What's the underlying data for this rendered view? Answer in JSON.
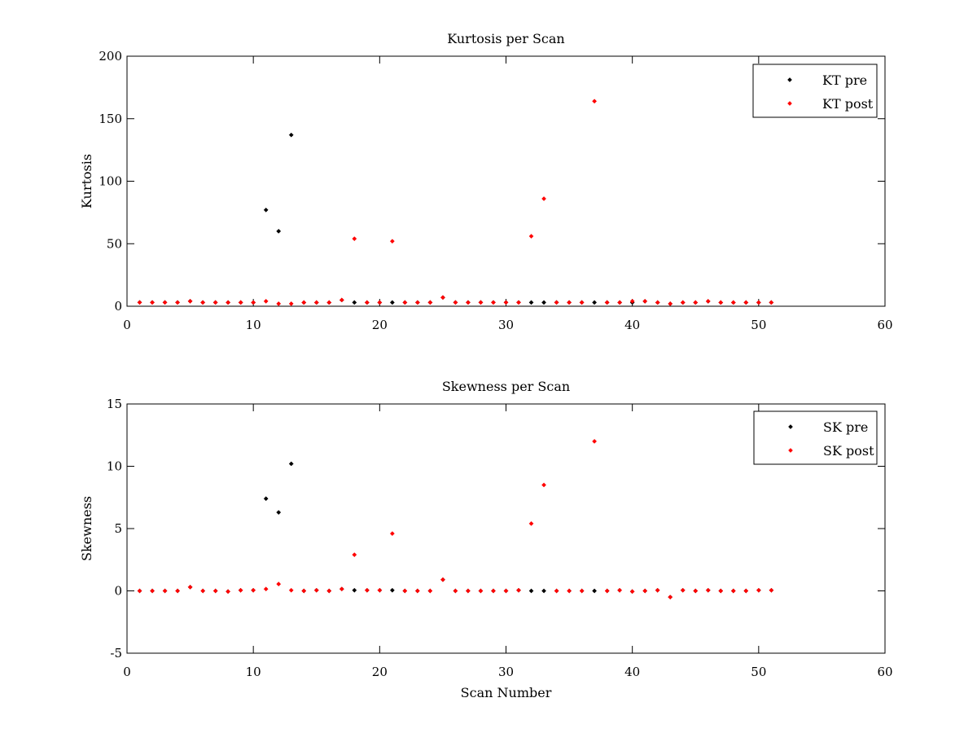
{
  "chart_data": [
    {
      "type": "scatter",
      "title": "Kurtosis per Scan",
      "xlabel": "",
      "ylabel": "Kurtosis",
      "xlim": [
        0,
        60
      ],
      "ylim": [
        0,
        200
      ],
      "xticks": [
        0,
        10,
        20,
        30,
        40,
        50,
        60
      ],
      "yticks": [
        0,
        50,
        100,
        150,
        200
      ],
      "grid": false,
      "legend_position": "top-right",
      "series": [
        {
          "name": "KT pre",
          "color": "#000000",
          "x": [
            1,
            2,
            3,
            4,
            5,
            6,
            7,
            8,
            9,
            10,
            11,
            12,
            13,
            14,
            15,
            16,
            17,
            18,
            19,
            20,
            21,
            22,
            23,
            24,
            25,
            26,
            27,
            28,
            29,
            30,
            31,
            32,
            33,
            34,
            35,
            36,
            37,
            38,
            39,
            40,
            41,
            42,
            43,
            44,
            45,
            46,
            47,
            48,
            49,
            50,
            51
          ],
          "y": [
            3,
            3,
            3,
            3,
            4,
            3,
            3,
            3,
            3,
            3,
            77,
            60,
            137,
            3,
            3,
            3,
            5,
            3,
            3,
            3,
            3,
            3,
            3,
            3,
            7,
            3,
            3,
            3,
            3,
            3,
            3,
            3,
            3,
            3,
            3,
            3,
            3,
            3,
            3,
            3,
            4,
            3,
            2,
            3,
            3,
            4,
            3,
            3,
            3,
            3,
            3
          ]
        },
        {
          "name": "KT post",
          "color": "#ff0000",
          "x": [
            1,
            2,
            3,
            4,
            5,
            6,
            7,
            8,
            9,
            10,
            11,
            12,
            13,
            14,
            15,
            16,
            17,
            18,
            19,
            20,
            21,
            22,
            23,
            24,
            25,
            26,
            27,
            28,
            29,
            30,
            31,
            32,
            33,
            34,
            35,
            36,
            37,
            38,
            39,
            40,
            41,
            42,
            43,
            44,
            45,
            46,
            47,
            48,
            49,
            50,
            51
          ],
          "y": [
            3,
            3,
            3,
            3,
            4,
            3,
            3,
            3,
            3,
            3,
            4,
            2,
            2,
            3,
            3,
            3,
            5,
            54,
            3,
            3,
            52,
            3,
            3,
            3,
            7,
            3,
            3,
            3,
            3,
            3,
            3,
            56,
            86,
            3,
            3,
            3,
            164,
            3,
            3,
            4,
            4,
            3,
            2,
            3,
            3,
            4,
            3,
            3,
            3,
            3,
            3
          ]
        }
      ]
    },
    {
      "type": "scatter",
      "title": "Skewness per Scan",
      "xlabel": "Scan Number",
      "ylabel": "Skewness",
      "xlim": [
        0,
        60
      ],
      "ylim": [
        -5,
        15
      ],
      "xticks": [
        0,
        10,
        20,
        30,
        40,
        50,
        60
      ],
      "yticks": [
        -5,
        0,
        5,
        10,
        15
      ],
      "grid": false,
      "legend_position": "top-right",
      "series": [
        {
          "name": "SK pre",
          "color": "#000000",
          "x": [
            1,
            2,
            3,
            4,
            5,
            6,
            7,
            8,
            9,
            10,
            11,
            12,
            13,
            14,
            15,
            16,
            17,
            18,
            19,
            20,
            21,
            22,
            23,
            24,
            25,
            26,
            27,
            28,
            29,
            30,
            31,
            32,
            33,
            34,
            35,
            36,
            37,
            38,
            39,
            40,
            41,
            42,
            43,
            44,
            45,
            46,
            47,
            48,
            49,
            50,
            51
          ],
          "y": [
            0,
            0,
            0,
            0,
            0.3,
            0,
            0,
            -0.05,
            0.05,
            0.05,
            7.4,
            6.3,
            10.2,
            0,
            0.05,
            0,
            0.15,
            0.05,
            0.05,
            0.05,
            0.05,
            0,
            0,
            0,
            0.9,
            0,
            0,
            0,
            0,
            0,
            0.05,
            0,
            0,
            0,
            0,
            0,
            0,
            0,
            0.05,
            -0.05,
            0,
            0.05,
            -0.5,
            0.05,
            0,
            0.05,
            0,
            0,
            0,
            0.05,
            0.05
          ]
        },
        {
          "name": "SK post",
          "color": "#ff0000",
          "x": [
            1,
            2,
            3,
            4,
            5,
            6,
            7,
            8,
            9,
            10,
            11,
            12,
            13,
            14,
            15,
            16,
            17,
            18,
            19,
            20,
            21,
            22,
            23,
            24,
            25,
            26,
            27,
            28,
            29,
            30,
            31,
            32,
            33,
            34,
            35,
            36,
            37,
            38,
            39,
            40,
            41,
            42,
            43,
            44,
            45,
            46,
            47,
            48,
            49,
            50,
            51
          ],
          "y": [
            0,
            0,
            0,
            0,
            0.3,
            0,
            0,
            -0.05,
            0.05,
            0.05,
            0.15,
            0.55,
            0.05,
            0,
            0.05,
            0,
            0.15,
            2.9,
            0.05,
            0.05,
            4.6,
            0,
            0,
            0,
            0.9,
            0,
            0,
            0,
            0,
            0,
            0.05,
            5.4,
            8.5,
            0,
            0,
            0,
            12,
            0,
            0.05,
            -0.05,
            0,
            0.05,
            -0.5,
            0.05,
            0,
            0.05,
            0,
            0,
            0,
            0.05,
            0.05
          ]
        }
      ]
    }
  ]
}
